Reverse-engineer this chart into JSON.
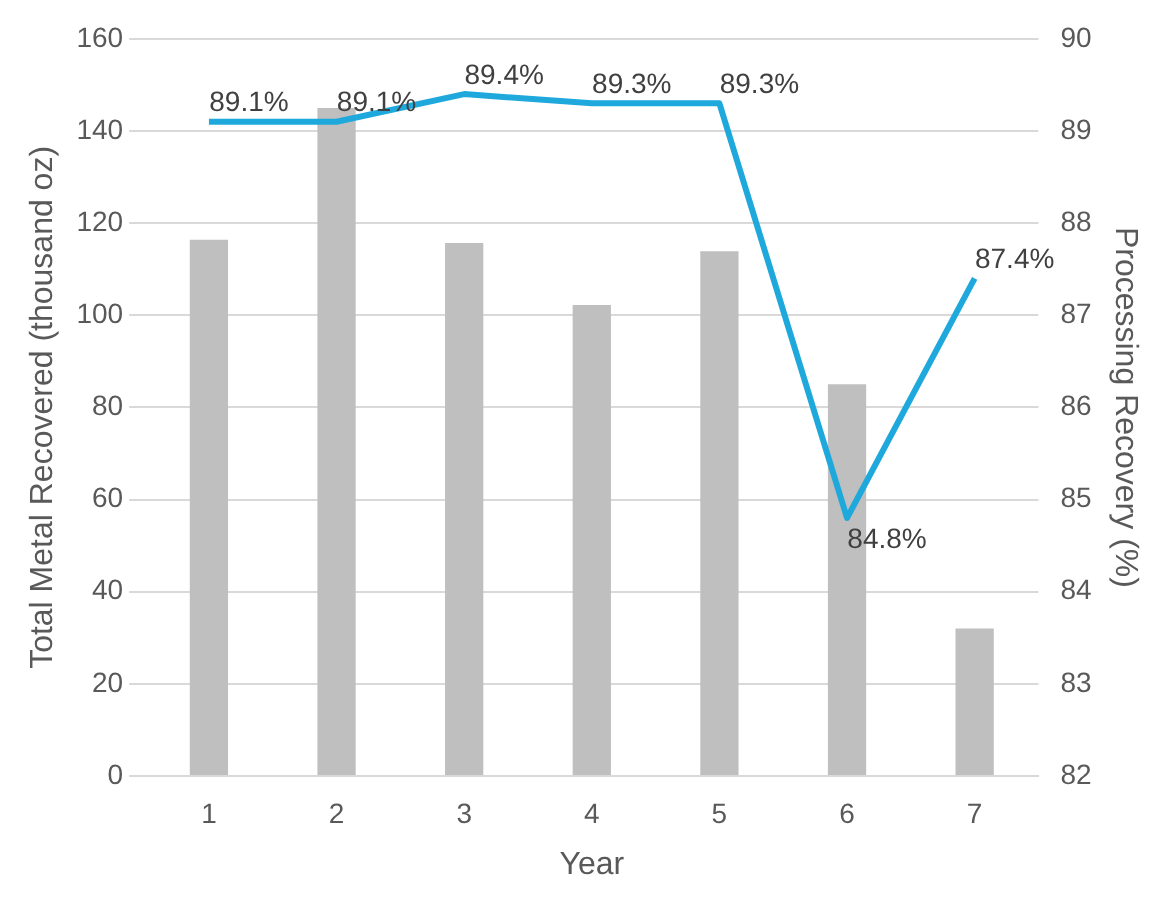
{
  "chart_data": {
    "type": "bar",
    "xlabel": "Year",
    "ylabel": "Total Metal Recovered (thousand oz)",
    "y2label": "Processing Recovery (%)",
    "categories": [
      "1",
      "2",
      "3",
      "4",
      "5",
      "6",
      "7"
    ],
    "series": [
      {
        "color": "#bfbfbf",
        "values": [
          116.4,
          145,
          115.7,
          102.2,
          113.9,
          85,
          32
        ]
      },
      {
        "type": "line",
        "axis": "y2",
        "color": "#1fa8dc",
        "values": [
          89.1,
          89.1,
          89.4,
          89.3,
          89.3,
          84.8,
          87.4
        ],
        "value_labels": [
          "89.1%",
          "89.1%",
          "89.4%",
          "89.3%",
          "89.3%",
          "84.8%",
          "87.4%"
        ]
      }
    ],
    "ylim": [
      0,
      160
    ],
    "yticks": [
      0,
      20,
      40,
      60,
      80,
      100,
      120,
      140,
      160
    ],
    "y2lim": [
      82,
      90
    ],
    "y2ticks": [
      82,
      83,
      84,
      85,
      86,
      87,
      88,
      89,
      90
    ],
    "grid": "y",
    "legend": false,
    "marker": "none"
  }
}
